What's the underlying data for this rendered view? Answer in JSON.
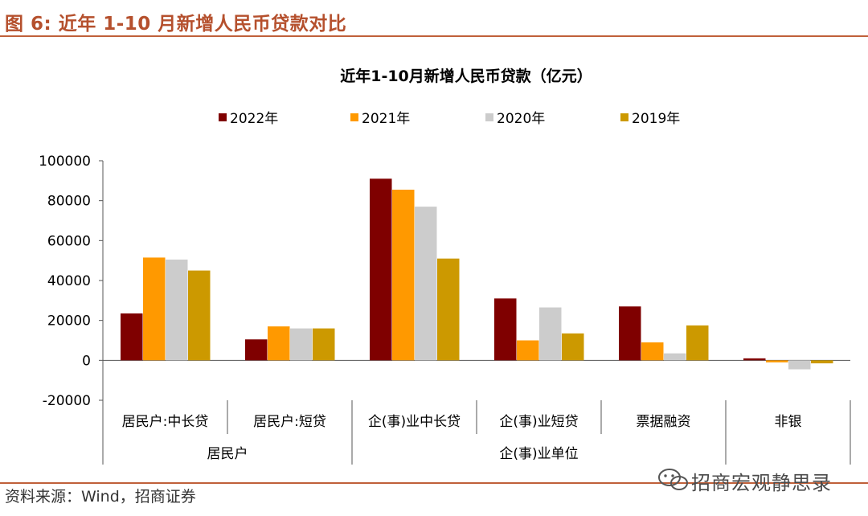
{
  "figure": {
    "title": "图 6:  近年 1-10 月新增人民币贷款对比",
    "source": "资料来源：Wind，招商证券",
    "watermark": "招商宏观静思录"
  },
  "chart_data": {
    "type": "bar",
    "title": "近年1-10月新增人民币贷款（亿元）",
    "categories": [
      "居民户:中长贷",
      "居民户:短贷",
      "企(事)业中长贷",
      "企(事)业短贷",
      "票据融资",
      "非银"
    ],
    "groups": [
      {
        "label": "居民户",
        "categories": [
          "居民户:中长贷",
          "居民户:短贷"
        ]
      },
      {
        "label": "企(事)业单位",
        "categories": [
          "企(事)业中长贷",
          "企(事)业短贷",
          "票据融资"
        ]
      }
    ],
    "series": [
      {
        "name": "2022年",
        "color": "#7f0000",
        "values": [
          23500,
          10500,
          91000,
          31000,
          27000,
          1000
        ]
      },
      {
        "name": "2021年",
        "color": "#ff9900",
        "values": [
          51500,
          17000,
          85500,
          10000,
          9000,
          -1000
        ]
      },
      {
        "name": "2020年",
        "color": "#cccccc",
        "values": [
          50500,
          16000,
          77000,
          26500,
          3500,
          -4500
        ]
      },
      {
        "name": "2019年",
        "color": "#cc9900",
        "values": [
          45000,
          16000,
          51000,
          13500,
          17500,
          -1500
        ]
      }
    ],
    "ylim": [
      -20000,
      100000
    ],
    "yticks": [
      "100000",
      "80000",
      "60000",
      "40000",
      "20000",
      "0",
      "-20000"
    ],
    "grid": false,
    "legend_position": "top"
  }
}
